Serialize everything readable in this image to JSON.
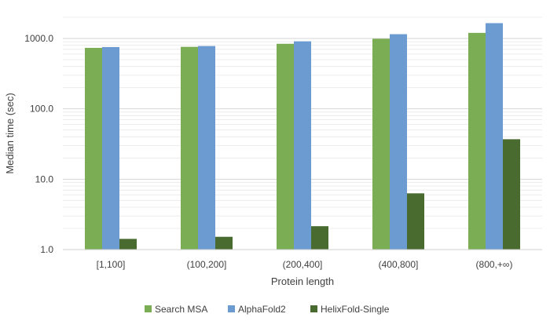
{
  "chart_data": {
    "type": "bar",
    "title": "",
    "xlabel": "Protein length",
    "ylabel": "Median time (sec)",
    "yscale": "log",
    "ylim": [
      1,
      2000
    ],
    "y_ticks": [
      1,
      10,
      100,
      1000
    ],
    "y_tick_labels": [
      "1.0",
      "10.0",
      "100.0",
      "1000.0"
    ],
    "grid": true,
    "legend_position": "bottom",
    "categories": [
      "[1,100]",
      "(100,200]",
      "(200,400]",
      "(400,800]",
      "(800,+∞)"
    ],
    "series": [
      {
        "name": "Search MSA",
        "color": "#7aad54",
        "values": [
          735,
          760,
          840,
          990,
          1200
        ]
      },
      {
        "name": "AlphaFold2",
        "color": "#6b9bd1",
        "values": [
          755,
          780,
          910,
          1150,
          1650
        ]
      },
      {
        "name": "HelixFold-Single",
        "color": "#4a6b30",
        "values": [
          1.42,
          1.52,
          2.15,
          6.3,
          37
        ]
      }
    ]
  }
}
